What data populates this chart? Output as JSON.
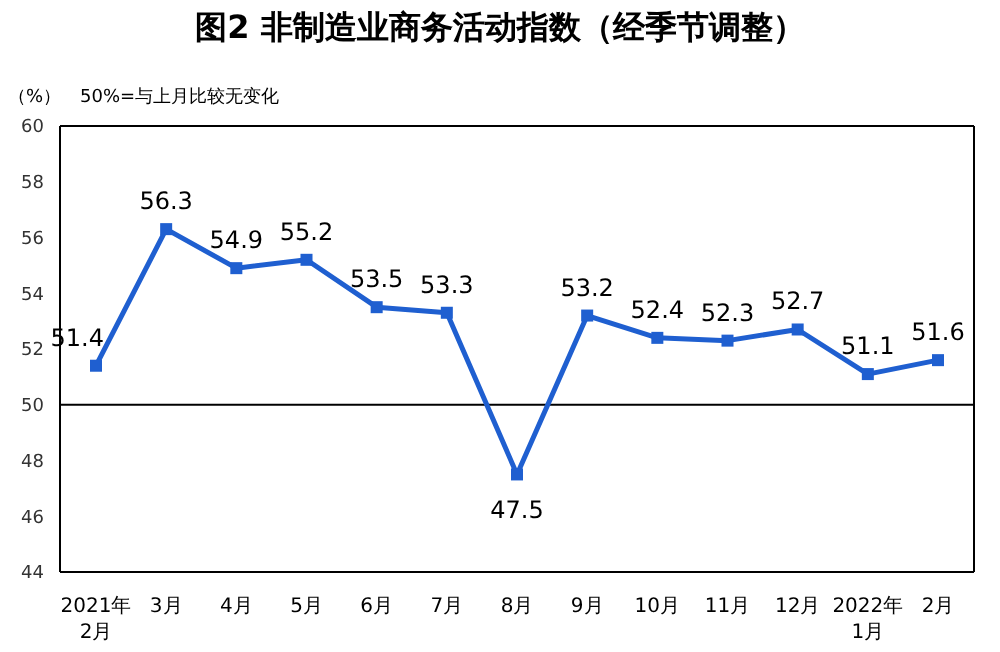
{
  "chart_data": {
    "type": "line",
    "title": "图2 非制造业商务活动指数（经季节调整）",
    "ylabel": "（%）",
    "annotations": [
      "50%=与上月比较无变化"
    ],
    "categories": [
      "2021年\n2月",
      "3月",
      "4月",
      "5月",
      "6月",
      "7月",
      "8月",
      "9月",
      "10月",
      "11月",
      "12月",
      "2022年\n1月",
      "2月"
    ],
    "series": [
      {
        "color": "#1f5fd0",
        "values": [
          51.4,
          56.3,
          54.9,
          55.2,
          53.5,
          53.3,
          47.5,
          53.2,
          52.4,
          52.3,
          52.7,
          51.1,
          51.6
        ]
      }
    ],
    "ylim": [
      44,
      60
    ],
    "yticks": [
      44,
      46,
      48,
      50,
      52,
      54,
      56,
      58,
      60
    ],
    "grid": false,
    "legend": false,
    "marker": "square",
    "line_style": "solid",
    "data_labels": true,
    "ref_lines": [
      {
        "axis": "y",
        "value": 50,
        "color": "#000000"
      }
    ]
  }
}
